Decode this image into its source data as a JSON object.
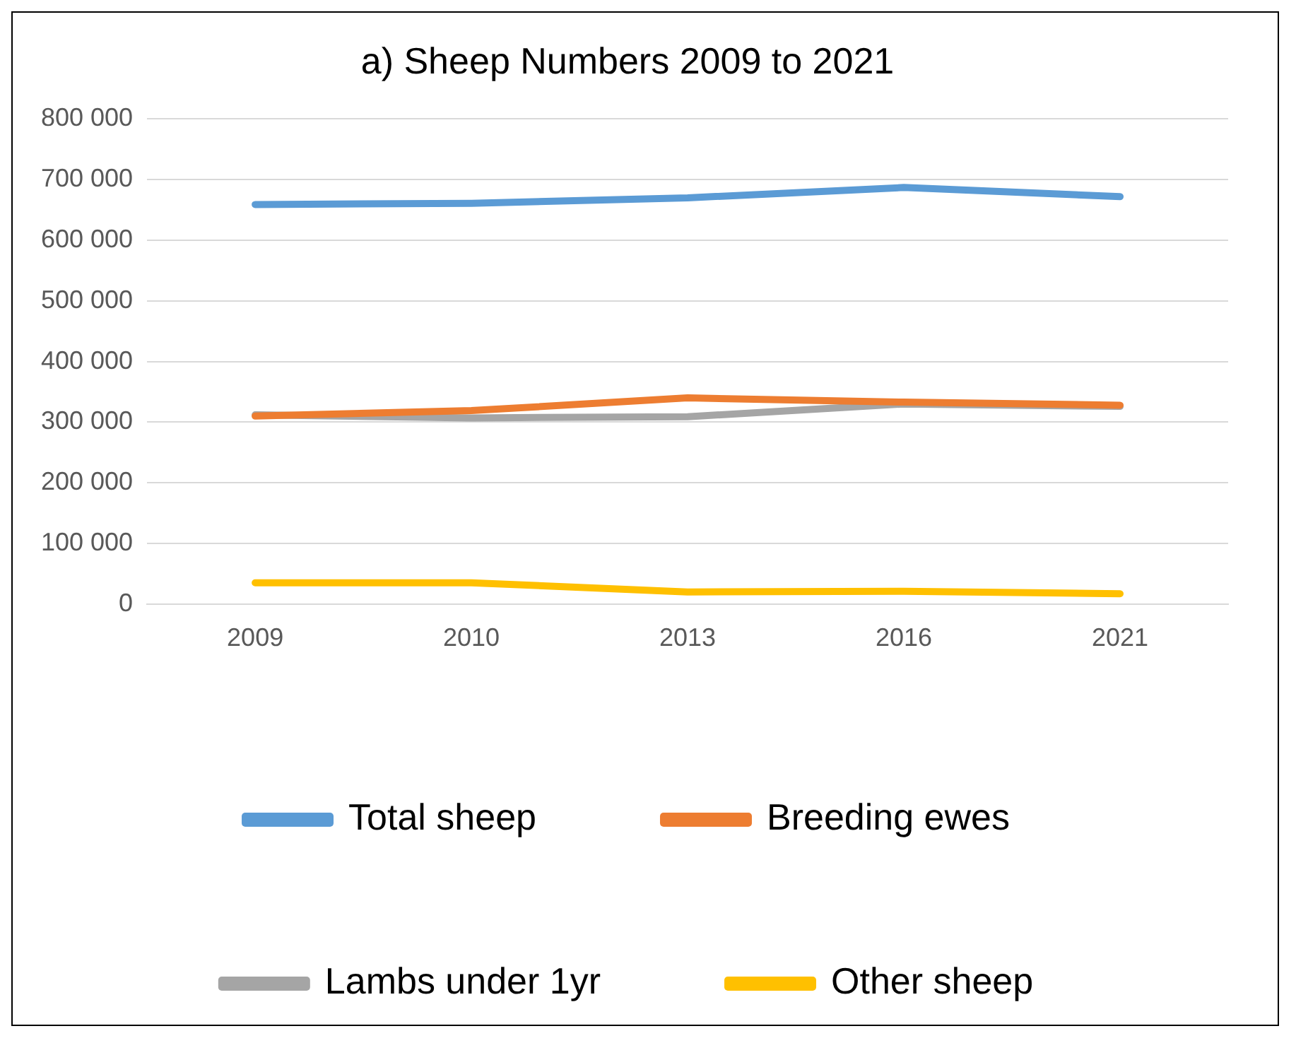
{
  "chart_data": {
    "type": "line",
    "title": "a) Sheep Numbers 2009 to 2021",
    "categories": [
      "2009",
      "2010",
      "2013",
      "2016",
      "2021"
    ],
    "series": [
      {
        "name": "Total sheep",
        "color": "#5b9bd5",
        "values": [
          659000,
          661000,
          670000,
          687000,
          672000
        ]
      },
      {
        "name": "Breeding ewes",
        "color": "#ed7d31",
        "values": [
          310000,
          319000,
          340000,
          333000,
          328000
        ]
      },
      {
        "name": "Lambs under 1yr",
        "color": "#a5a5a5",
        "values": [
          312000,
          307000,
          309000,
          330000,
          326000
        ]
      },
      {
        "name": "Other sheep",
        "color": "#ffc000",
        "values": [
          35000,
          35000,
          20000,
          21000,
          17000
        ]
      }
    ],
    "ylim": [
      0,
      800000
    ],
    "yticks": [
      {
        "value": 0,
        "label": "0"
      },
      {
        "value": 100000,
        "label": "100 000"
      },
      {
        "value": 200000,
        "label": "200 000"
      },
      {
        "value": 300000,
        "label": "300 000"
      },
      {
        "value": 400000,
        "label": "400 000"
      },
      {
        "value": 500000,
        "label": "500 000"
      },
      {
        "value": 600000,
        "label": "600 000"
      },
      {
        "value": 700000,
        "label": "700 000"
      },
      {
        "value": 800000,
        "label": "800 000"
      }
    ],
    "grid": "y",
    "legend": "bottom",
    "marker": "none",
    "line_style": "solid"
  }
}
